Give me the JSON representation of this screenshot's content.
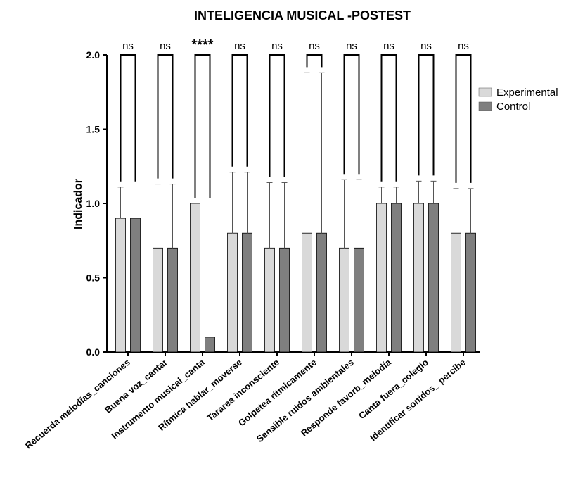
{
  "chart_data": {
    "type": "bar",
    "title": "INTELIGENCIA MUSICAL -POSTEST",
    "ylabel": "Indicador",
    "xlabel": "",
    "ylim": [
      0,
      2.0
    ],
    "yticks": [
      "0.0",
      "0.5",
      "1.0",
      "1.5",
      "2.0"
    ],
    "grid": false,
    "legend_position": "right",
    "categories": [
      "Recuerda melodías_canciones",
      "Buena voz_cantar",
      "Instrumento musical_canta",
      "Rítmica hablar_moverse",
      "Tararea inconsciente",
      "Golpetea rítmicamente",
      "Sensible ruidos ambientales",
      "Responde favorb_melodía",
      "Canta fuera_colegio",
      "Identificar sonidos_ percibe"
    ],
    "series": [
      {
        "name": "Experimental",
        "color": "#d9d9d9",
        "values": [
          0.9,
          0.7,
          1.0,
          0.8,
          0.7,
          0.8,
          0.7,
          1.0,
          1.0,
          0.8
        ],
        "error": [
          0.21,
          0.43,
          0.0,
          0.41,
          0.44,
          1.08,
          0.46,
          0.11,
          0.15,
          0.3
        ]
      },
      {
        "name": "Control",
        "color": "#7f7f7f",
        "values": [
          0.9,
          0.7,
          0.1,
          0.8,
          0.7,
          0.8,
          0.7,
          1.0,
          1.0,
          0.8
        ],
        "error": [
          0.0,
          0.43,
          0.31,
          0.41,
          0.44,
          1.08,
          0.46,
          0.11,
          0.15,
          0.3
        ]
      }
    ],
    "significance": [
      "ns",
      "ns",
      "****",
      "ns",
      "ns",
      "ns",
      "ns",
      "ns",
      "ns",
      "ns"
    ]
  }
}
